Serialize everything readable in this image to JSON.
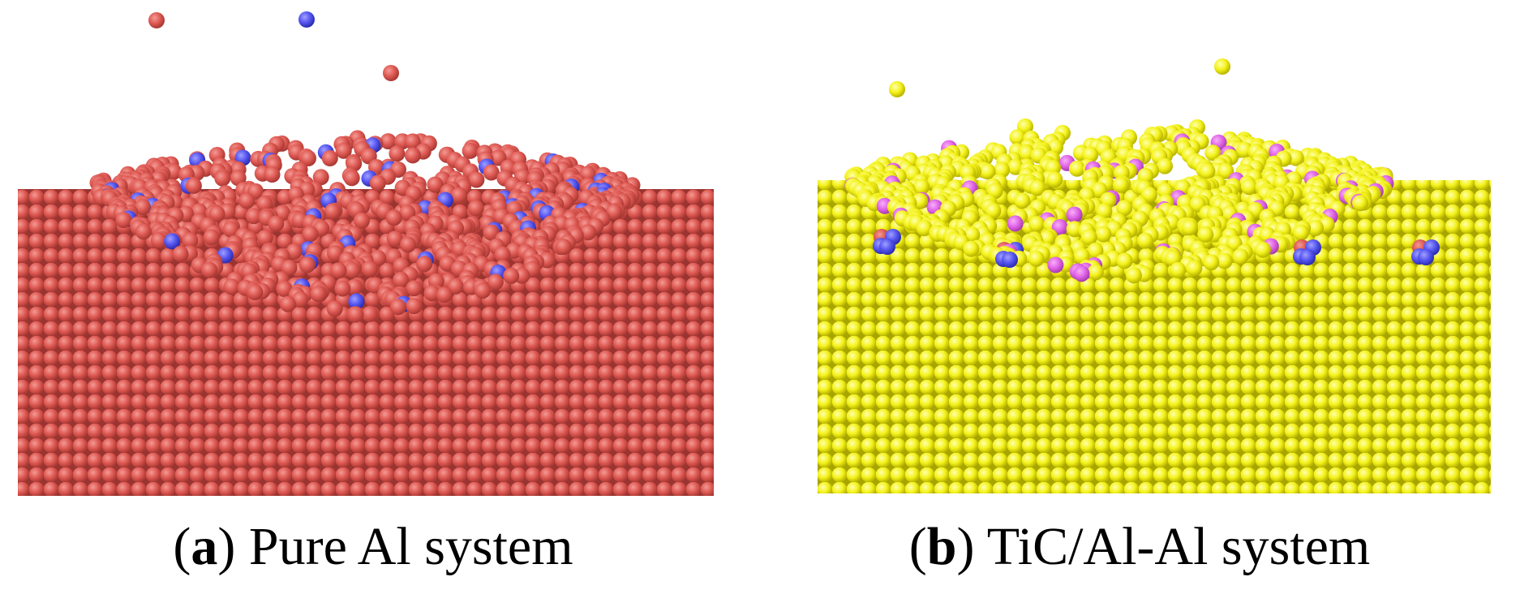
{
  "panels": [
    {
      "label_open": "(",
      "label": "a",
      "label_close": ")",
      "caption": "Pure Al system"
    },
    {
      "label_open": "(",
      "label": "b",
      "label_close": ")",
      "caption": "TiC/Al-Al system"
    }
  ]
}
